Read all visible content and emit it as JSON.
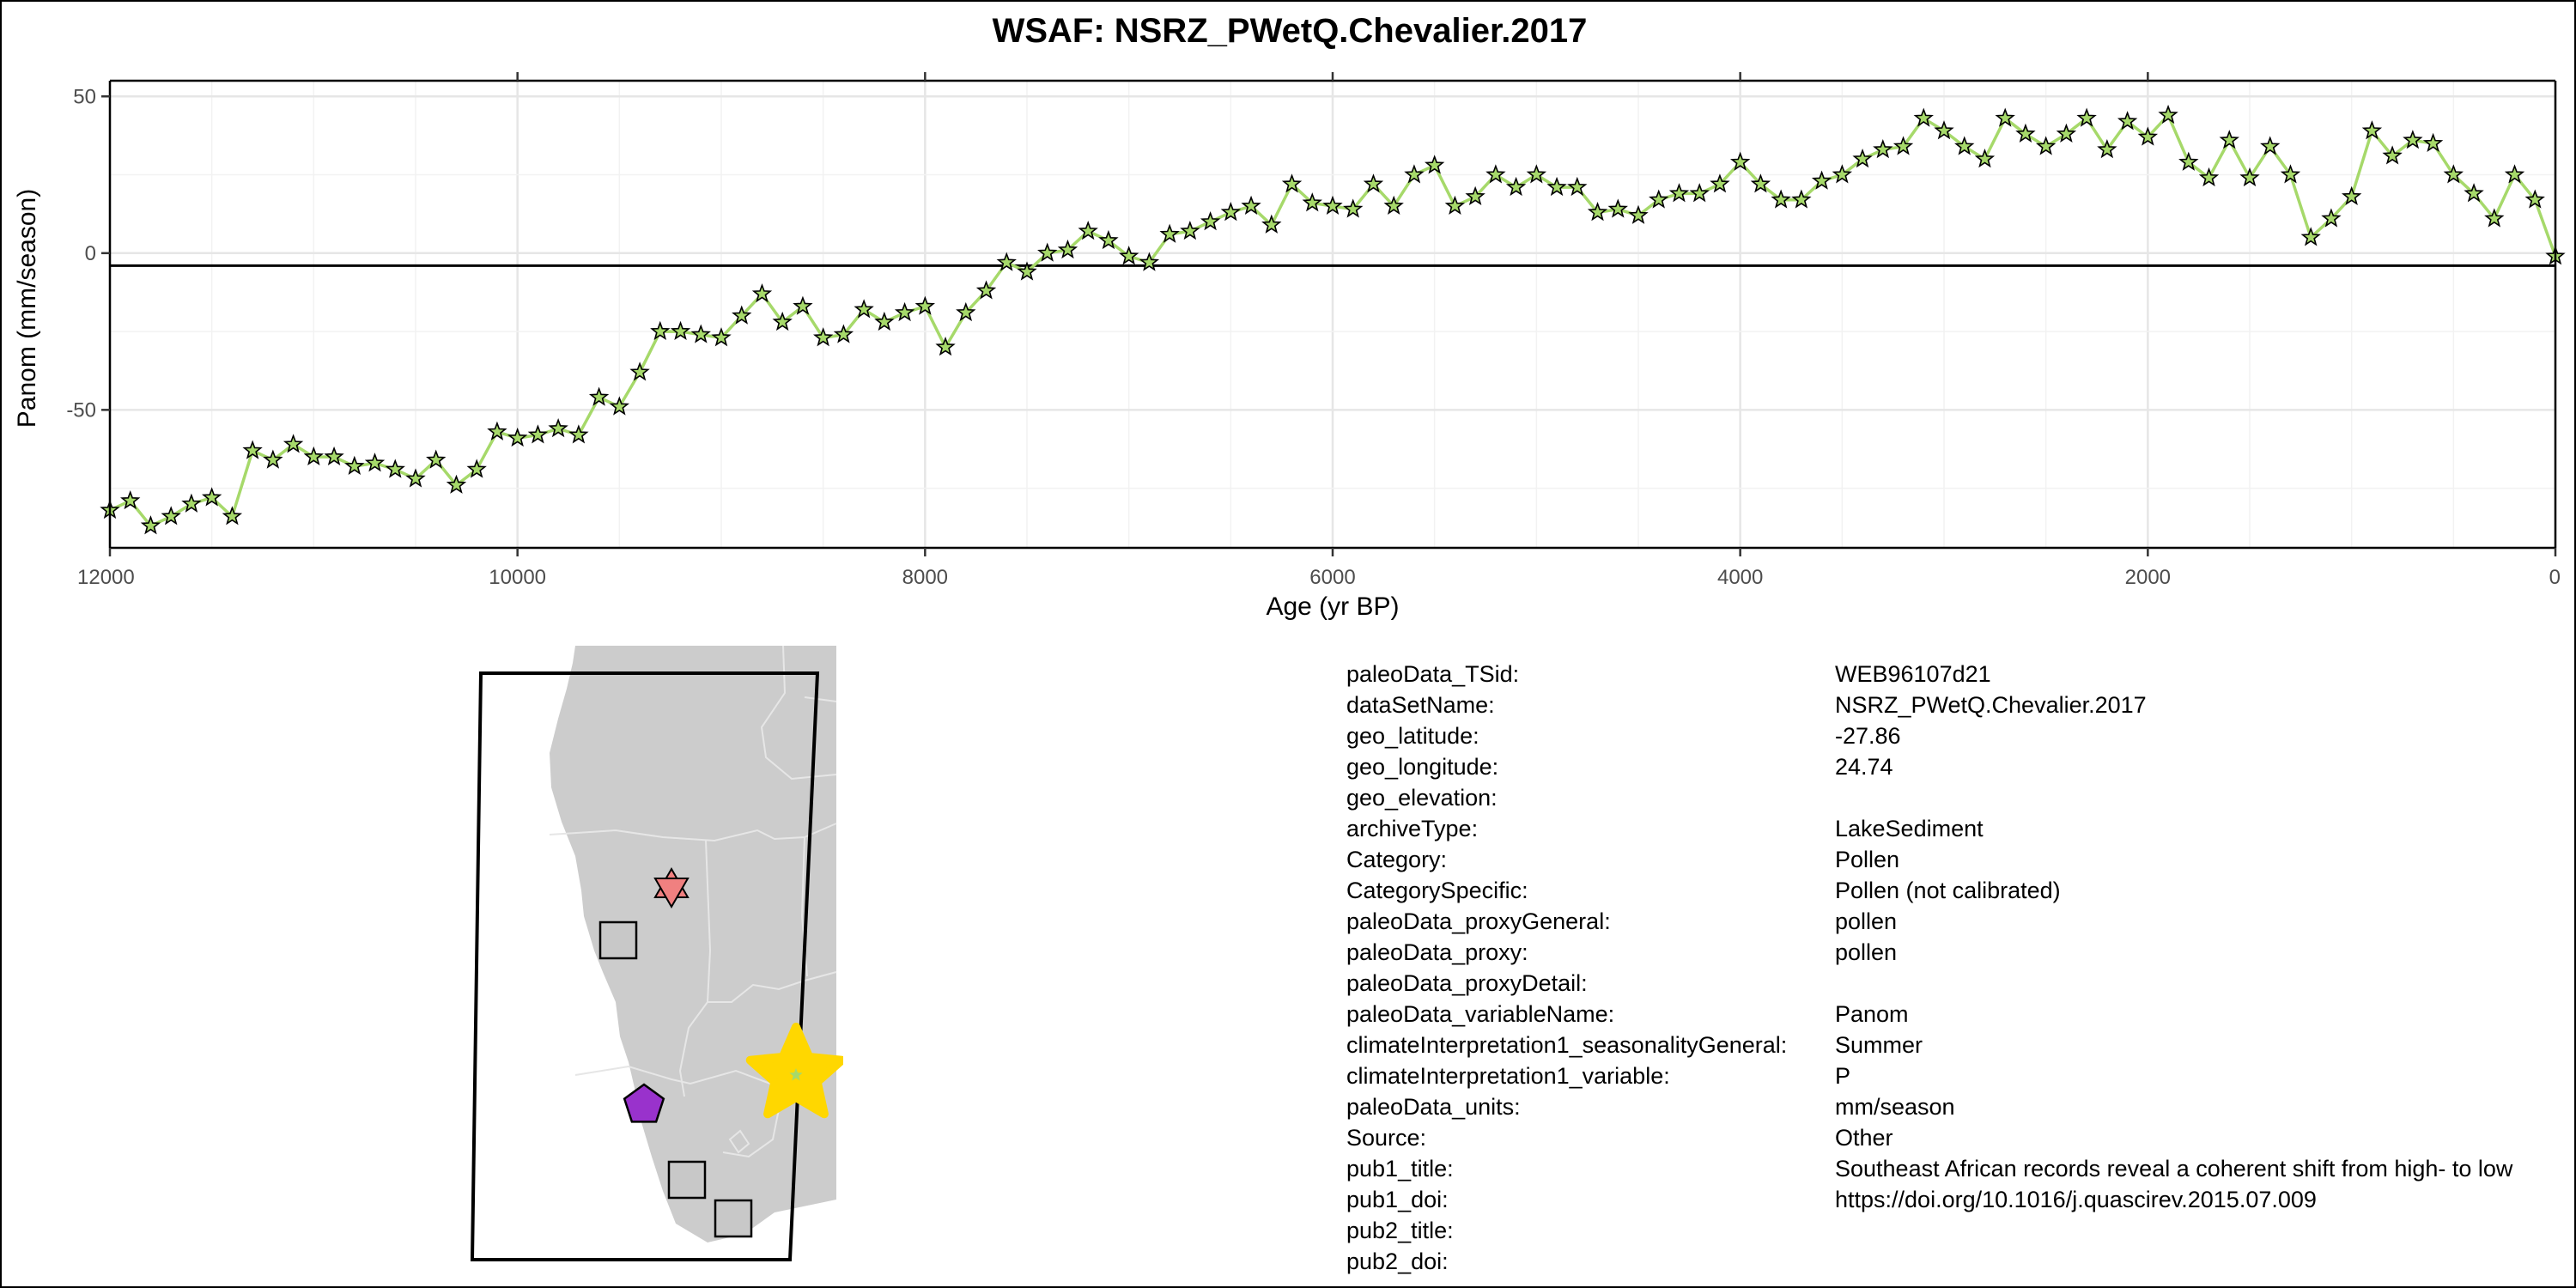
{
  "chart_data": {
    "type": "line",
    "title": "WSAF: NSRZ_PWetQ.Chevalier.2017",
    "xlabel": "Age (yr BP)",
    "ylabel": "Panom (mm/season)",
    "xlim": [
      12000,
      0
    ],
    "x_reversed": true,
    "ylim": [
      -94,
      55
    ],
    "xticks": [
      12000,
      10000,
      8000,
      6000,
      4000,
      2000,
      0
    ],
    "yticks": [
      50,
      0,
      -50
    ],
    "grid": true,
    "reference_line_y": -4,
    "line_color": "#a6d96a",
    "marker": "star",
    "marker_color": "#a6d96a",
    "series": [
      {
        "x": [
          12000,
          11900,
          11800,
          11700,
          11600,
          11500,
          11400,
          11300,
          11200,
          11100,
          11000,
          10900,
          10800,
          10700,
          10600,
          10500,
          10400,
          10300,
          10200,
          10100,
          10000,
          9900,
          9800,
          9700,
          9600,
          9500,
          9400,
          9300,
          9200,
          9100,
          9000,
          8900,
          8800,
          8700,
          8600,
          8500,
          8400,
          8300,
          8200,
          8100,
          8000,
          7900,
          7800,
          7700,
          7600,
          7500,
          7400,
          7300,
          7200,
          7100,
          7000,
          6900,
          6800,
          6700,
          6600,
          6500,
          6400,
          6300,
          6200,
          6100,
          6000,
          5900,
          5800,
          5700,
          5600,
          5500,
          5400,
          5300,
          5200,
          5100,
          5000,
          4900,
          4800,
          4700,
          4600,
          4500,
          4400,
          4300,
          4200,
          4100,
          4000,
          3900,
          3800,
          3700,
          3600,
          3500,
          3400,
          3300,
          3200,
          3100,
          3000,
          2900,
          2800,
          2700,
          2600,
          2500,
          2400,
          2300,
          2200,
          2100,
          2000,
          1900,
          1800,
          1700,
          1600,
          1500,
          1400,
          1300,
          1200,
          1100,
          1000,
          900,
          800,
          700,
          600,
          500,
          400,
          300,
          200,
          100,
          0
        ],
        "values": [
          -82,
          -79,
          -87,
          -84,
          -80,
          -78,
          -84,
          -63,
          -66,
          -61,
          -65,
          -65,
          -68,
          -67,
          -69,
          -72,
          -66,
          -74,
          -69,
          -57,
          -59,
          -58,
          -56,
          -58,
          -46,
          -49,
          -38,
          -25,
          -25,
          -26,
          -27,
          -20,
          -13,
          -22,
          -17,
          -27,
          -26,
          -18,
          -22,
          -19,
          -17,
          -30,
          -19,
          -12,
          -3,
          -6,
          0,
          1,
          7,
          4,
          -1,
          -3,
          6,
          7,
          10,
          13,
          15,
          9,
          22,
          16,
          15,
          14,
          22,
          15,
          25,
          28,
          15,
          18,
          25,
          21,
          25,
          21,
          21,
          13,
          14,
          12,
          17,
          19,
          19,
          22,
          29,
          22,
          17,
          17,
          23,
          25,
          30,
          33,
          34,
          43,
          39,
          34,
          30,
          43,
          38,
          34,
          38,
          43,
          33,
          42,
          37,
          44,
          29,
          24,
          36,
          24,
          34,
          25,
          5,
          11,
          18,
          39,
          31,
          36,
          35,
          25,
          19,
          11,
          25,
          17,
          -1
        ]
      }
    ]
  },
  "map": {
    "markers": [
      {
        "shape": "star-of-david",
        "color": "#f08080"
      },
      {
        "shape": "square",
        "color": "#c8c8c8"
      },
      {
        "shape": "pentagon",
        "color": "#9932cc"
      },
      {
        "shape": "square",
        "color": "#c8c8c8"
      },
      {
        "shape": "square",
        "color": "#c8c8c8"
      },
      {
        "shape": "star",
        "color": "#ffd700",
        "highlight": true
      }
    ],
    "land_color": "#cccccc",
    "border_color": "#e6e6e6"
  },
  "metadata": [
    {
      "key": "paleoData_TSid:",
      "value": "WEB96107d21"
    },
    {
      "key": "dataSetName:",
      "value": "NSRZ_PWetQ.Chevalier.2017"
    },
    {
      "key": "geo_latitude:",
      "value": "-27.86"
    },
    {
      "key": "geo_longitude:",
      "value": "24.74"
    },
    {
      "key": "geo_elevation:",
      "value": ""
    },
    {
      "key": "archiveType:",
      "value": "LakeSediment"
    },
    {
      "key": "Category:",
      "value": "Pollen"
    },
    {
      "key": "CategorySpecific:",
      "value": "Pollen (not calibrated)"
    },
    {
      "key": "paleoData_proxyGeneral:",
      "value": "pollen"
    },
    {
      "key": "paleoData_proxy:",
      "value": "pollen"
    },
    {
      "key": "paleoData_proxyDetail:",
      "value": ""
    },
    {
      "key": "paleoData_variableName:",
      "value": "Panom"
    },
    {
      "key": "climateInterpretation1_seasonalityGeneral:",
      "value": "Summer"
    },
    {
      "key": "climateInterpretation1_variable:",
      "value": "P"
    },
    {
      "key": "paleoData_units:",
      "value": "mm/season"
    },
    {
      "key": "Source:",
      "value": "Other"
    },
    {
      "key": "pub1_title:",
      "value": "Southeast African records reveal a coherent shift from high- to low"
    },
    {
      "key": "pub1_doi:",
      "value": "https://doi.org/10.1016/j.quascirev.2015.07.009"
    },
    {
      "key": "pub2_title:",
      "value": ""
    },
    {
      "key": "pub2_doi:",
      "value": ""
    }
  ]
}
